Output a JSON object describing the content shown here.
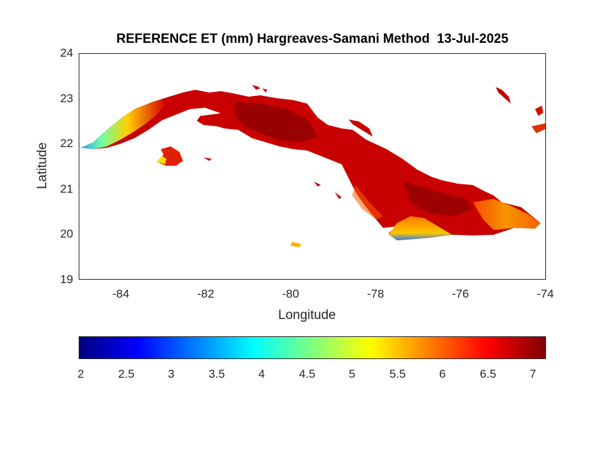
{
  "map": {
    "title": "REFERENCE ET (mm) Hargreaves-Samani Method  13-Jul-2025",
    "xlabel": "Longitude",
    "ylabel": "Latitude",
    "x_range": [
      -85,
      -74
    ],
    "y_range": [
      19,
      24
    ],
    "x_ticks": [
      "-84",
      "-82",
      "-80",
      "-78",
      "-76",
      "-74"
    ],
    "y_ticks": [
      "24",
      "23",
      "22",
      "21",
      "20",
      "19"
    ],
    "region": "Cuba",
    "colormap": "jet",
    "colors": {
      "low": "#00007f",
      "mid": "#7fff7f",
      "high": "#7f0000",
      "dominant": "#cc0000"
    }
  },
  "colorbar": {
    "ticks": [
      "2",
      "2.5",
      "3",
      "3.5",
      "4",
      "4.5",
      "5",
      "5.5",
      "6",
      "6.5",
      "7"
    ],
    "range": [
      2,
      7.15
    ]
  }
}
